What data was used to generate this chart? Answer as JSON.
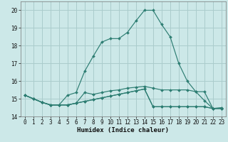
{
  "title": "",
  "xlabel": "Humidex (Indice chaleur)",
  "bg_color": "#cce8e8",
  "grid_color": "#aacccc",
  "line_color": "#2d7d72",
  "xlim": [
    -0.5,
    23.5
  ],
  "ylim": [
    14.0,
    20.5
  ],
  "yticks": [
    14,
    15,
    16,
    17,
    18,
    19,
    20
  ],
  "xticks": [
    0,
    1,
    2,
    3,
    4,
    5,
    6,
    7,
    8,
    9,
    10,
    11,
    12,
    13,
    14,
    15,
    16,
    17,
    18,
    19,
    20,
    21,
    22,
    23
  ],
  "lines": [
    {
      "x": [
        0,
        1,
        2,
        3,
        4,
        5,
        6,
        7,
        8,
        9,
        10,
        11,
        12,
        13,
        14,
        15,
        16,
        17,
        18,
        19,
        20,
        21,
        22,
        23
      ],
      "y": [
        15.2,
        15.0,
        14.8,
        14.65,
        14.65,
        15.2,
        15.35,
        16.55,
        17.4,
        18.2,
        18.4,
        18.4,
        18.75,
        19.4,
        20.0,
        20.0,
        19.2,
        18.5,
        17.0,
        16.0,
        15.4,
        14.9,
        14.45,
        14.5
      ]
    },
    {
      "x": [
        0,
        1,
        2,
        3,
        4,
        5,
        6,
        7,
        8,
        9,
        10,
        11,
        12,
        13,
        14,
        15,
        16,
        17,
        18,
        19,
        20,
        21,
        22,
        23
      ],
      "y": [
        15.2,
        15.0,
        14.8,
        14.65,
        14.65,
        14.65,
        14.75,
        15.35,
        15.25,
        15.35,
        15.45,
        15.5,
        15.6,
        15.65,
        15.7,
        15.6,
        15.5,
        15.5,
        15.5,
        15.5,
        15.4,
        15.4,
        14.45,
        14.45
      ]
    },
    {
      "x": [
        0,
        1,
        2,
        3,
        4,
        5,
        6,
        7,
        8,
        9,
        10,
        11,
        12,
        13,
        14,
        15,
        16,
        17,
        18,
        19,
        20,
        21,
        22,
        23
      ],
      "y": [
        15.2,
        15.0,
        14.8,
        14.65,
        14.65,
        14.65,
        14.75,
        14.85,
        14.95,
        15.05,
        15.15,
        15.25,
        15.35,
        15.45,
        15.55,
        14.55,
        14.55,
        14.55,
        14.55,
        14.55,
        14.55,
        14.55,
        14.45,
        14.45
      ]
    },
    {
      "x": [
        0,
        1,
        2,
        3,
        4,
        5,
        6,
        7,
        8,
        9,
        10,
        11,
        12,
        13,
        14,
        15,
        16,
        17,
        18,
        19,
        20,
        21,
        22,
        23
      ],
      "y": [
        15.2,
        15.0,
        14.8,
        14.65,
        14.65,
        14.65,
        14.75,
        14.85,
        14.95,
        15.05,
        15.15,
        15.25,
        15.35,
        15.45,
        15.55,
        14.55,
        14.55,
        14.55,
        14.55,
        14.55,
        14.55,
        14.55,
        14.45,
        14.45
      ]
    }
  ]
}
